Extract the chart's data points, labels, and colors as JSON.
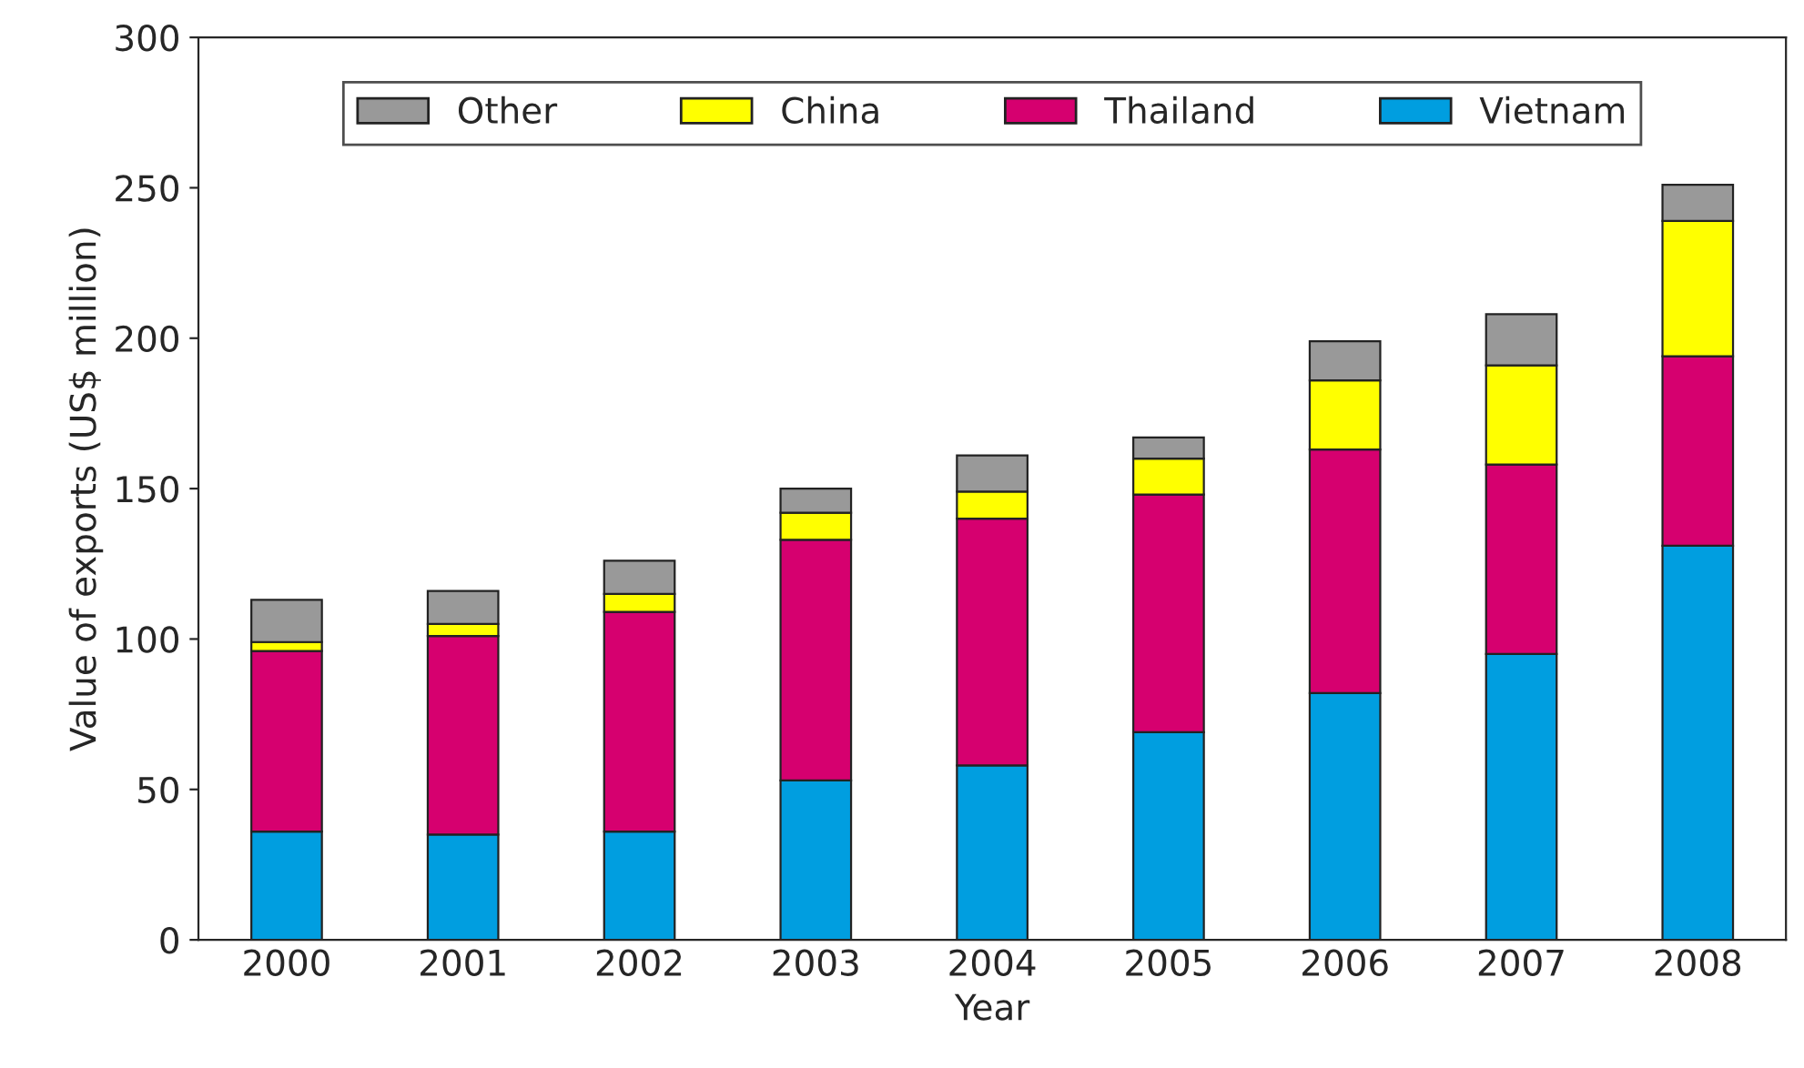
{
  "chart_data": {
    "type": "bar",
    "stacked": true,
    "xlabel": "Year",
    "ylabel": "Value of exports (US$ million)",
    "categories": [
      "2000",
      "2001",
      "2002",
      "2003",
      "2004",
      "2005",
      "2006",
      "2007",
      "2008"
    ],
    "series": [
      {
        "name": "Vietnam",
        "color": "#009ee0",
        "values": [
          36,
          35,
          36,
          53,
          58,
          69,
          82,
          95,
          131
        ]
      },
      {
        "name": "Thailand",
        "color": "#d6006f",
        "values": [
          60,
          66,
          73,
          80,
          82,
          79,
          81,
          63,
          63
        ]
      },
      {
        "name": "China",
        "color": "#ffff00",
        "values": [
          3,
          4,
          6,
          9,
          9,
          12,
          23,
          33,
          45
        ]
      },
      {
        "name": "Other",
        "color": "#999999",
        "values": [
          14,
          11,
          11,
          8,
          12,
          7,
          13,
          17,
          12
        ]
      }
    ],
    "ylim": [
      0,
      300
    ],
    "yticks": [
      0,
      50,
      100,
      150,
      200,
      250,
      300
    ],
    "grid": false,
    "legend": "top"
  }
}
